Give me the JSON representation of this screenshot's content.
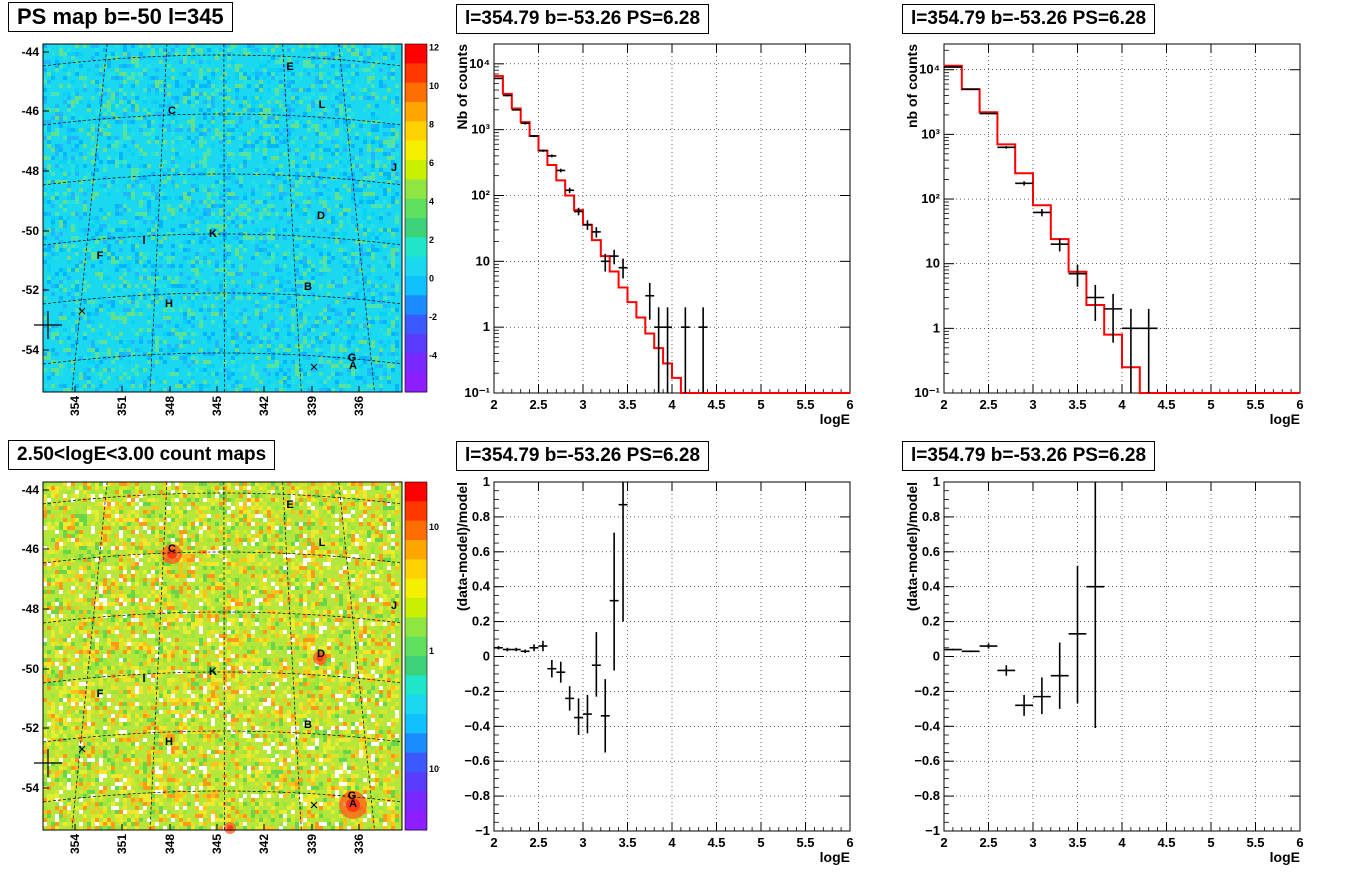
{
  "titles": {
    "map_top": "PS map b=-50 l=345",
    "map_bottom": "2.50<logE<3.00 count maps",
    "spec_left": "l=354.79 b=-53.26 PS=6.28",
    "spec_right": "l=354.79 b=-53.26 PS=6.28",
    "resid_left": "l=354.79 b=-53.26 PS=6.28",
    "resid_right": "l=354.79 b=-53.26 PS=6.28"
  },
  "maps": {
    "y_ticks": [
      "-44",
      "-46",
      "-48",
      "-50",
      "-52",
      "-54"
    ],
    "x_ticks": [
      "354",
      "351",
      "348",
      "345",
      "342",
      "339",
      "336"
    ],
    "sources": [
      "E",
      "L",
      "C",
      "J",
      "D",
      "K",
      "I",
      "F",
      "B",
      "H",
      "G",
      "A"
    ],
    "top_colorbar_ticks": [
      "12",
      "10",
      "8",
      "6",
      "4",
      "2",
      "0",
      "-2",
      "-4"
    ],
    "bottom_colorbar_ticks": [
      "10",
      "1",
      "10⁻¹"
    ]
  },
  "chart_data": [
    {
      "type": "line",
      "panel": "spectrum-left",
      "title": "l=354.79 b=-53.26 PS=6.28",
      "xlabel": "logE",
      "ylabel": "Nb of counts",
      "xlim": [
        2,
        6
      ],
      "ylim": [
        0.1,
        20000
      ],
      "ylog": true,
      "grid": true,
      "x_ticks": [
        "2",
        "2.5",
        "3",
        "3.5",
        "4",
        "4.5",
        "5",
        "5.5",
        "6"
      ],
      "y_ticks": [
        "10⁻¹",
        "1",
        "10",
        "10²",
        "10³",
        "10⁴"
      ],
      "model_color": "#ff0000",
      "model_step": [
        [
          2.0,
          6500
        ],
        [
          2.1,
          3500
        ],
        [
          2.2,
          2100
        ],
        [
          2.3,
          1300
        ],
        [
          2.4,
          800
        ],
        [
          2.5,
          480
        ],
        [
          2.6,
          290
        ],
        [
          2.7,
          170
        ],
        [
          2.8,
          100
        ],
        [
          2.9,
          60
        ],
        [
          3.0,
          36
        ],
        [
          3.1,
          21
        ],
        [
          3.2,
          12
        ],
        [
          3.3,
          7
        ],
        [
          3.4,
          4
        ],
        [
          3.5,
          2.4
        ],
        [
          3.6,
          1.4
        ],
        [
          3.7,
          0.8
        ],
        [
          3.8,
          0.48
        ],
        [
          3.9,
          0.28
        ],
        [
          4.0,
          0.17
        ],
        [
          4.1,
          0.1
        ],
        [
          6.0,
          0.1
        ]
      ],
      "data_points": [
        {
          "x": 2.05,
          "y": 6000,
          "xerr": 0.05,
          "ylo": 5900,
          "yhi": 6100
        },
        {
          "x": 2.15,
          "y": 3300,
          "xerr": 0.05,
          "ylo": 3200,
          "yhi": 3400
        },
        {
          "x": 2.25,
          "y": 2000,
          "xerr": 0.05,
          "ylo": 1950,
          "yhi": 2050
        },
        {
          "x": 2.35,
          "y": 1250,
          "xerr": 0.05,
          "ylo": 1200,
          "yhi": 1300
        },
        {
          "x": 2.45,
          "y": 800,
          "xerr": 0.05,
          "ylo": 770,
          "yhi": 830
        },
        {
          "x": 2.55,
          "y": 480,
          "xerr": 0.05,
          "ylo": 460,
          "yhi": 500
        },
        {
          "x": 2.65,
          "y": 400,
          "xerr": 0.05,
          "ylo": 380,
          "yhi": 420
        },
        {
          "x": 2.75,
          "y": 240,
          "xerr": 0.05,
          "ylo": 225,
          "yhi": 255
        },
        {
          "x": 2.85,
          "y": 120,
          "xerr": 0.05,
          "ylo": 109,
          "yhi": 131
        },
        {
          "x": 2.95,
          "y": 57,
          "xerr": 0.05,
          "ylo": 50,
          "yhi": 65
        },
        {
          "x": 3.05,
          "y": 36,
          "xerr": 0.05,
          "ylo": 30,
          "yhi": 42
        },
        {
          "x": 3.15,
          "y": 28,
          "xerr": 0.05,
          "ylo": 23,
          "yhi": 33
        },
        {
          "x": 3.25,
          "y": 10,
          "xerr": 0.05,
          "ylo": 7,
          "yhi": 13
        },
        {
          "x": 3.35,
          "y": 12,
          "xerr": 0.05,
          "ylo": 9,
          "yhi": 15
        },
        {
          "x": 3.45,
          "y": 8,
          "xerr": 0.05,
          "ylo": 5.5,
          "yhi": 11
        },
        {
          "x": 3.75,
          "y": 3,
          "xerr": 0.05,
          "ylo": 1.3,
          "yhi": 4.7
        },
        {
          "x": 3.85,
          "y": 1,
          "xerr": 0.05,
          "ylo": 0.1,
          "yhi": 2
        },
        {
          "x": 3.95,
          "y": 1,
          "xerr": 0.05,
          "ylo": 0.1,
          "yhi": 2
        },
        {
          "x": 4.15,
          "y": 1,
          "xerr": 0.05,
          "ylo": 0.1,
          "yhi": 2
        },
        {
          "x": 4.35,
          "y": 1,
          "xerr": 0.05,
          "ylo": 0.1,
          "yhi": 2
        }
      ]
    },
    {
      "type": "line",
      "panel": "spectrum-right",
      "title": "l=354.79 b=-53.26 PS=6.28",
      "xlabel": "logE",
      "ylabel": "nb of counts",
      "xlim": [
        2,
        6
      ],
      "ylim": [
        0.1,
        25000
      ],
      "ylog": true,
      "grid": true,
      "x_ticks": [
        "2",
        "2.5",
        "3",
        "3.5",
        "4",
        "4.5",
        "5",
        "5.5",
        "6"
      ],
      "y_ticks": [
        "10⁻¹",
        "1",
        "10",
        "10²",
        "10³",
        "10⁴"
      ],
      "model_color": "#ff0000",
      "model_step": [
        [
          2.0,
          11500
        ],
        [
          2.2,
          5000
        ],
        [
          2.4,
          2200
        ],
        [
          2.6,
          700
        ],
        [
          2.8,
          250
        ],
        [
          3.0,
          80
        ],
        [
          3.2,
          24
        ],
        [
          3.4,
          7.5
        ],
        [
          3.6,
          2.3
        ],
        [
          3.8,
          0.8
        ],
        [
          4.0,
          0.25
        ],
        [
          4.2,
          0.1
        ],
        [
          6.0,
          0.1
        ]
      ],
      "data_points": [
        {
          "x": 2.1,
          "y": 11000,
          "xerr": 0.1,
          "ylo": 10800,
          "yhi": 11200
        },
        {
          "x": 2.3,
          "y": 5000,
          "xerr": 0.1,
          "ylo": 4900,
          "yhi": 5100
        },
        {
          "x": 2.5,
          "y": 2100,
          "xerr": 0.1,
          "ylo": 2050,
          "yhi": 2150
        },
        {
          "x": 2.7,
          "y": 630,
          "xerr": 0.1,
          "ylo": 600,
          "yhi": 660
        },
        {
          "x": 2.9,
          "y": 175,
          "xerr": 0.1,
          "ylo": 162,
          "yhi": 188
        },
        {
          "x": 3.1,
          "y": 62,
          "xerr": 0.1,
          "ylo": 54,
          "yhi": 70
        },
        {
          "x": 3.3,
          "y": 20,
          "xerr": 0.1,
          "ylo": 15.5,
          "yhi": 24.5
        },
        {
          "x": 3.5,
          "y": 7,
          "xerr": 0.1,
          "ylo": 4.4,
          "yhi": 9.6
        },
        {
          "x": 3.7,
          "y": 3,
          "xerr": 0.1,
          "ylo": 1.3,
          "yhi": 4.7
        },
        {
          "x": 3.9,
          "y": 2,
          "xerr": 0.1,
          "ylo": 0.6,
          "yhi": 3.4
        },
        {
          "x": 4.1,
          "y": 1,
          "xerr": 0.1,
          "ylo": 0.1,
          "yhi": 2
        },
        {
          "x": 4.3,
          "y": 1,
          "xerr": 0.1,
          "ylo": 0.1,
          "yhi": 2
        }
      ]
    },
    {
      "type": "scatter",
      "panel": "residual-left",
      "title": "l=354.79 b=-53.26 PS=6.28",
      "xlabel": "logE",
      "ylabel": "(data-model)/model",
      "xlim": [
        2,
        6
      ],
      "ylim": [
        -1,
        1
      ],
      "grid": true,
      "x_ticks": [
        "2",
        "2.5",
        "3",
        "3.5",
        "4",
        "4.5",
        "5",
        "5.5",
        "6"
      ],
      "y_ticks": [
        "−1",
        "−0.8",
        "−0.6",
        "−0.4",
        "−0.2",
        "0",
        "0.2",
        "0.4",
        "0.6",
        "0.8",
        "1"
      ],
      "data_points": [
        {
          "x": 2.05,
          "y": 0.05,
          "xerr": 0.05,
          "ylo": 0.04,
          "yhi": 0.06
        },
        {
          "x": 2.15,
          "y": 0.04,
          "xerr": 0.05,
          "ylo": 0.03,
          "yhi": 0.05
        },
        {
          "x": 2.25,
          "y": 0.04,
          "xerr": 0.05,
          "ylo": 0.03,
          "yhi": 0.05
        },
        {
          "x": 2.35,
          "y": 0.03,
          "xerr": 0.05,
          "ylo": 0.02,
          "yhi": 0.04
        },
        {
          "x": 2.45,
          "y": 0.05,
          "xerr": 0.05,
          "ylo": 0.03,
          "yhi": 0.07
        },
        {
          "x": 2.55,
          "y": 0.06,
          "xerr": 0.05,
          "ylo": 0.03,
          "yhi": 0.09
        },
        {
          "x": 2.65,
          "y": -0.07,
          "xerr": 0.05,
          "ylo": -0.12,
          "yhi": -0.02
        },
        {
          "x": 2.75,
          "y": -0.09,
          "xerr": 0.05,
          "ylo": -0.15,
          "yhi": -0.03
        },
        {
          "x": 2.85,
          "y": -0.24,
          "xerr": 0.05,
          "ylo": -0.31,
          "yhi": -0.17
        },
        {
          "x": 2.95,
          "y": -0.35,
          "xerr": 0.05,
          "ylo": -0.45,
          "yhi": -0.24
        },
        {
          "x": 3.05,
          "y": -0.33,
          "xerr": 0.05,
          "ylo": -0.44,
          "yhi": -0.22
        },
        {
          "x": 3.15,
          "y": -0.05,
          "xerr": 0.05,
          "ylo": -0.23,
          "yhi": 0.14
        },
        {
          "x": 3.25,
          "y": -0.34,
          "xerr": 0.05,
          "ylo": -0.55,
          "yhi": -0.13
        },
        {
          "x": 3.35,
          "y": 0.32,
          "xerr": 0.05,
          "ylo": -0.08,
          "yhi": 0.71
        },
        {
          "x": 3.45,
          "y": 0.87,
          "xerr": 0.05,
          "ylo": 0.2,
          "yhi": 1.0
        }
      ]
    },
    {
      "type": "scatter",
      "panel": "residual-right",
      "title": "l=354.79 b=-53.26 PS=6.28",
      "xlabel": "logE",
      "ylabel": "(data-model)/model",
      "xlim": [
        2,
        6
      ],
      "ylim": [
        -1,
        1
      ],
      "grid": true,
      "x_ticks": [
        "2",
        "2.5",
        "3",
        "3.5",
        "4",
        "4.5",
        "5",
        "5.5",
        "6"
      ],
      "y_ticks": [
        "−1",
        "−0.8",
        "−0.6",
        "−0.4",
        "−0.2",
        "0",
        "0.2",
        "0.4",
        "0.6",
        "0.8",
        "1"
      ],
      "data_points": [
        {
          "x": 2.1,
          "y": 0.04,
          "xerr": 0.1,
          "ylo": 0.035,
          "yhi": 0.045
        },
        {
          "x": 2.3,
          "y": 0.03,
          "xerr": 0.1,
          "ylo": 0.025,
          "yhi": 0.035
        },
        {
          "x": 2.5,
          "y": 0.06,
          "xerr": 0.1,
          "ylo": 0.045,
          "yhi": 0.075
        },
        {
          "x": 2.7,
          "y": -0.08,
          "xerr": 0.1,
          "ylo": -0.11,
          "yhi": -0.05
        },
        {
          "x": 2.9,
          "y": -0.28,
          "xerr": 0.1,
          "ylo": -0.34,
          "yhi": -0.22
        },
        {
          "x": 3.1,
          "y": -0.23,
          "xerr": 0.1,
          "ylo": -0.33,
          "yhi": -0.12
        },
        {
          "x": 3.3,
          "y": -0.11,
          "xerr": 0.1,
          "ylo": -0.3,
          "yhi": 0.08
        },
        {
          "x": 3.5,
          "y": 0.13,
          "xerr": 0.1,
          "ylo": -0.27,
          "yhi": 0.52
        },
        {
          "x": 3.7,
          "y": 0.4,
          "xerr": 0.1,
          "ylo": -0.41,
          "yhi": 1.0
        }
      ]
    }
  ]
}
